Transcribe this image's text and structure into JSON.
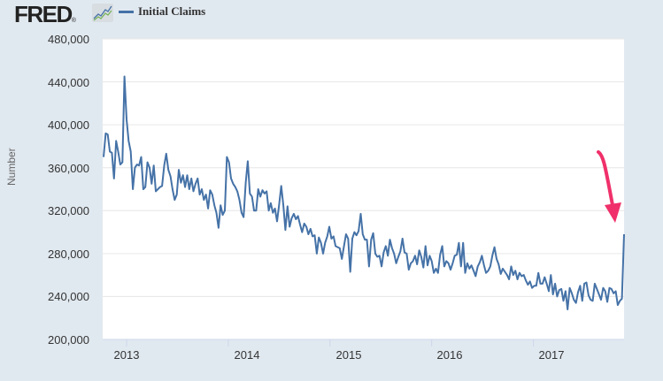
{
  "header": {
    "logo_text": "FRED",
    "logo_mark": "®",
    "legend_label": "Initial Claims"
  },
  "colors": {
    "series": "#4572a7",
    "arrow": "#f0306a",
    "background": "#e1e9f0",
    "plot_bg": "#ffffff",
    "grid": "#e6e6e6"
  },
  "chart_data": {
    "type": "line",
    "title": "",
    "xlabel": "",
    "ylabel": "Number",
    "ylim": [
      200000,
      480000
    ],
    "yticks": [
      "200,000",
      "240,000",
      "280,000",
      "320,000",
      "360,000",
      "400,000",
      "440,000",
      "480,000"
    ],
    "xticks": [
      "2013",
      "2014",
      "2015",
      "2016",
      "2017"
    ],
    "grid": true,
    "legend": {
      "position": "top-left",
      "entries": [
        "Initial Claims"
      ]
    },
    "x_range": [
      "2012-09",
      "2017-09"
    ],
    "frequency": "weekly",
    "series": [
      {
        "name": "Initial Claims",
        "start": 2012.7,
        "step_years": 0.01917,
        "values": [
          370000,
          392000,
          391000,
          375000,
          374000,
          350000,
          385000,
          375000,
          363000,
          365000,
          445000,
          405000,
          385000,
          375000,
          340000,
          360000,
          363000,
          362000,
          370000,
          340000,
          342000,
          365000,
          360000,
          345000,
          362000,
          338000,
          340000,
          342000,
          343000,
          362000,
          373000,
          358000,
          352000,
          340000,
          330000,
          335000,
          358000,
          346000,
          353000,
          342000,
          353000,
          340000,
          350000,
          338000,
          345000,
          350000,
          335000,
          340000,
          330000,
          335000,
          322000,
          339000,
          335000,
          325000,
          318000,
          304000,
          325000,
          316000,
          320000,
          370000,
          365000,
          350000,
          345000,
          342000,
          338000,
          330000,
          318000,
          314000,
          346000,
          366000,
          336000,
          333000,
          320000,
          320000,
          340000,
          333000,
          339000,
          336000,
          338000,
          320000,
          327000,
          318000,
          322000,
          310000,
          326000,
          343000,
          325000,
          302000,
          324000,
          305000,
          313000,
          317000,
          312000,
          315000,
          307000,
          300000,
          308000,
          305000,
          298000,
          303000,
          296000,
          297000,
          280000,
          295000,
          290000,
          280000,
          290000,
          296000,
          305000,
          294000,
          296000,
          287000,
          286000,
          285000,
          275000,
          287000,
          298000,
          294000,
          263000,
          294000,
          300000,
          297000,
          301000,
          317000,
          298000,
          293000,
          293000,
          268000,
          293000,
          299000,
          280000,
          277000,
          278000,
          268000,
          281000,
          287000,
          278000,
          293000,
          285000,
          280000,
          271000,
          277000,
          282000,
          294000,
          281000,
          280000,
          265000,
          271000,
          273000,
          278000,
          270000,
          283000,
          277000,
          267000,
          287000,
          269000,
          278000,
          273000,
          262000,
          266000,
          262000,
          279000,
          287000,
          268000,
          273000,
          271000,
          265000,
          271000,
          278000,
          279000,
          290000,
          268000,
          290000,
          262000,
          271000,
          266000,
          269000,
          264000,
          259000,
          268000,
          272000,
          278000,
          269000,
          262000,
          264000,
          268000,
          278000,
          286000,
          275000,
          270000,
          261000,
          266000,
          263000,
          260000,
          256000,
          268000,
          260000,
          264000,
          256000,
          262000,
          259000,
          260000,
          255000,
          251000,
          254000,
          248000,
          250000,
          250000,
          262000,
          252000,
          252000,
          258000,
          252000,
          245000,
          260000,
          242000,
          252000,
          240000,
          246000,
          247000,
          236000,
          245000,
          228000,
          248000,
          243000,
          237000,
          234000,
          244000,
          250000,
          236000,
          252000,
          253000,
          241000,
          237000,
          236000,
          252000,
          247000,
          242000,
          237000,
          248000,
          245000,
          235000,
          248000,
          247000,
          243000,
          245000,
          232000,
          236000,
          238000,
          298000
        ]
      }
    ],
    "annotations": [
      {
        "type": "arrow",
        "color": "#f0306a",
        "points_to": "latest value ~298,000 (2017-09)"
      }
    ]
  }
}
